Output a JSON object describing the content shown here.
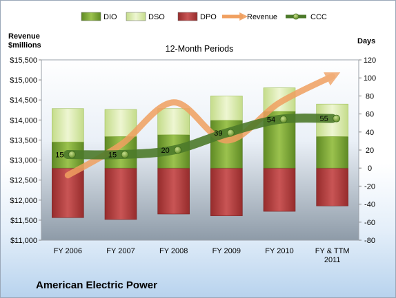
{
  "chart_data": {
    "type": "bar",
    "title": "12-Month Periods",
    "company": "American Electric Power",
    "left_axis": {
      "title_line1": "Revenue",
      "title_line2": "$millions",
      "range": [
        11000,
        15500
      ],
      "ticks": [
        "$11,000",
        "$11,500",
        "$12,000",
        "$12,500",
        "$13,000",
        "$13,500",
        "$14,000",
        "$14,500",
        "$15,000",
        "$15,500"
      ],
      "tick_values": [
        11000,
        11500,
        12000,
        12500,
        13000,
        13500,
        14000,
        14500,
        15000,
        15500
      ]
    },
    "right_axis": {
      "title": "Days",
      "range": [
        -80,
        120
      ],
      "ticks": [
        "-80",
        "-60",
        "-40",
        "-20",
        "0",
        "20",
        "40",
        "60",
        "80",
        "100",
        "120"
      ],
      "tick_values": [
        -80,
        -60,
        -40,
        -20,
        0,
        20,
        40,
        60,
        80,
        100,
        120
      ]
    },
    "categories": [
      "FY 2006",
      "FY 2007",
      "FY 2008",
      "FY 2009",
      "FY 2010",
      "FY & TTM 2011"
    ],
    "category_lines": [
      [
        "FY 2006"
      ],
      [
        "FY 2007"
      ],
      [
        "FY 2008"
      ],
      [
        "FY 2009"
      ],
      [
        "FY 2010"
      ],
      [
        "FY & TTM",
        "2011"
      ]
    ],
    "series": [
      {
        "name": "DIO",
        "axis": "days",
        "values": [
          29,
          35,
          37,
          53,
          63,
          35
        ],
        "color": "#7ea638"
      },
      {
        "name": "DSO",
        "axis": "days",
        "values": [
          37,
          30,
          29,
          27,
          26,
          36
        ],
        "color": "#d6e6a4"
      },
      {
        "name": "DPO",
        "axis": "days",
        "values": [
          -55,
          -57,
          -51,
          -53,
          -48,
          -42
        ],
        "color": "#b23b3b"
      },
      {
        "name": "Revenue",
        "axis": "revenue",
        "values": [
          12620,
          13380,
          14440,
          13490,
          14430,
          15090
        ],
        "color": "#f0a060"
      },
      {
        "name": "CCC",
        "axis": "days",
        "values": [
          15,
          15,
          20,
          39,
          54,
          55
        ],
        "color": "#4c7a2a"
      }
    ],
    "data_labels": [
      "15",
      "15",
      "20",
      "39",
      "54",
      "55"
    ],
    "legend_position": "top"
  }
}
